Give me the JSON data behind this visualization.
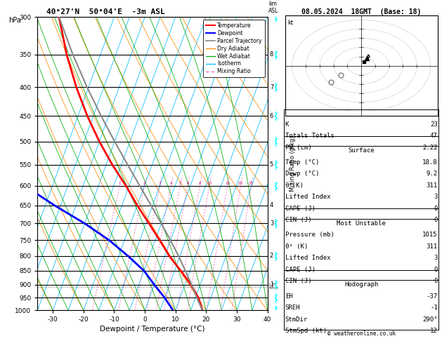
{
  "title_left": "40°27'N  50°04'E  -3m ASL",
  "title_right": "08.05.2024  18GMT  (Base: 18)",
  "hpa_label": "hPa",
  "km_label": "km\nASL",
  "xlabel": "Dewpoint / Temperature (°C)",
  "ylabel_right": "Mixing Ratio (g/kg)",
  "pressure_levels": [
    300,
    350,
    400,
    450,
    500,
    550,
    600,
    650,
    700,
    750,
    800,
    850,
    900,
    950,
    1000
  ],
  "temp_range_display": [
    -35,
    40
  ],
  "temp_ticks": [
    -30,
    -20,
    -10,
    0,
    10,
    20,
    30,
    40
  ],
  "skew_factor": 1.0,
  "mixing_ratio_vals": [
    1,
    2,
    3,
    4,
    5,
    6,
    8,
    10,
    15,
    20,
    25
  ],
  "temp_profile_T": [
    18.8,
    16.0,
    12.0,
    7.0,
    1.5,
    -3.5,
    -9.0,
    -15.0,
    -21.0,
    -28.0,
    -35.0,
    -42.0,
    -49.0,
    -56.0,
    -63.0
  ],
  "temp_profile_Td": [
    9.2,
    5.0,
    0.0,
    -5.0,
    -12.0,
    -20.0,
    -30.0,
    -42.0,
    -54.0,
    -62.0,
    -68.0,
    -72.0,
    -76.0,
    -79.0,
    -82.0
  ],
  "temp_profile_P": [
    1000,
    950,
    900,
    850,
    800,
    750,
    700,
    650,
    600,
    550,
    500,
    450,
    400,
    350,
    300
  ],
  "parcel_T": [
    18.8,
    15.5,
    12.2,
    8.5,
    4.5,
    0.0,
    -5.0,
    -10.5,
    -16.5,
    -23.0,
    -30.0,
    -37.5,
    -45.5,
    -54.0,
    -63.0
  ],
  "parcel_P": [
    1000,
    950,
    900,
    850,
    800,
    750,
    700,
    650,
    600,
    550,
    500,
    450,
    400,
    350,
    300
  ],
  "lcl_pressure": 908,
  "info_box": {
    "K": "23",
    "Totals Totals": "47",
    "PW (cm)": "2.22",
    "Surface_Temp": "18.8",
    "Surface_Dewp": "9.2",
    "Surface_theta_e": "311",
    "Surface_LI": "3",
    "Surface_CAPE": "0",
    "Surface_CIN": "0",
    "MU_Pressure": "1015",
    "MU_theta_e": "311",
    "MU_LI": "3",
    "MU_CAPE": "0",
    "MU_CIN": "0",
    "EH": "-37",
    "SREH": "-1",
    "StmDir": "290°",
    "StmSpd": "12"
  },
  "background_color": "#ffffff",
  "isotherm_color": "#00bbff",
  "dry_adiabat_color": "#ff8800",
  "wet_adiabat_color": "#00aa00",
  "mixing_ratio_color": "#ff44aa",
  "temp_color": "#ff0000",
  "dewpoint_color": "#0000ff",
  "parcel_color": "#888888",
  "km_show": {
    "350": "8",
    "400": "7",
    "450": "6",
    "550": "5",
    "650": "4",
    "700": "3",
    "800": "2",
    "900": "1"
  },
  "hodo_trace_u": [
    4,
    5,
    6,
    5,
    3,
    2
  ],
  "hodo_trace_v": [
    8,
    12,
    10,
    8,
    6,
    4
  ],
  "hodo_storm1": [
    -15,
    -10
  ],
  "hodo_storm2": [
    -22,
    -18
  ]
}
